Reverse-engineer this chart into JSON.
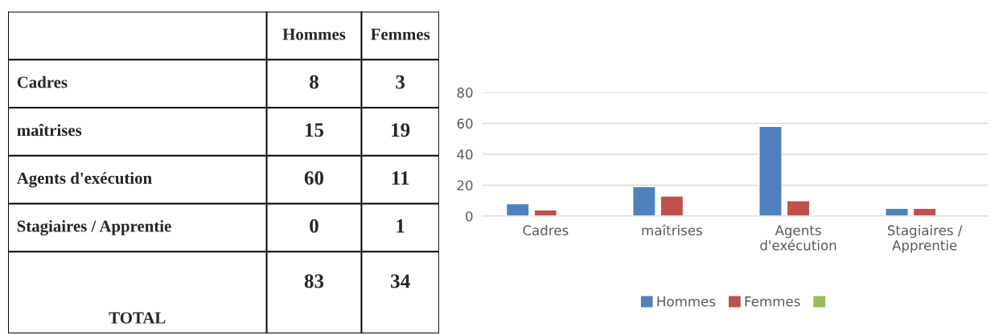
{
  "chart_data": [
    {
      "type": "other",
      "data_labels": true,
      "categories": [
        "Cadres",
        "maîtrises",
        "Agents d'exécution",
        "Stagiaires / Apprentie",
        "TOTAL"
      ],
      "series": [
        {
          "name": "Hommes",
          "values": [
            8,
            15,
            60,
            0,
            83
          ]
        },
        {
          "name": "Femmes",
          "values": [
            3,
            19,
            11,
            1,
            34
          ]
        }
      ]
    },
    {
      "type": "bar",
      "categories": [
        "Cadres",
        "maîtrises",
        "Agents d'exécution",
        "Stagiaires / Apprentie"
      ],
      "series": [
        {
          "name": "Hommes",
          "color": "#4f81bd",
          "values": [
            8,
            19,
            58,
            5
          ]
        },
        {
          "name": "Femmes",
          "color": "#c0504d",
          "values": [
            4,
            13,
            10,
            5
          ]
        },
        {
          "color": "#9bbb59",
          "values": [
            null,
            null,
            null,
            null
          ]
        }
      ],
      "ylim": [
        0,
        80
      ],
      "yticks": [
        0,
        20,
        40,
        60,
        80
      ],
      "grid": "y",
      "legend": "bottom"
    }
  ]
}
